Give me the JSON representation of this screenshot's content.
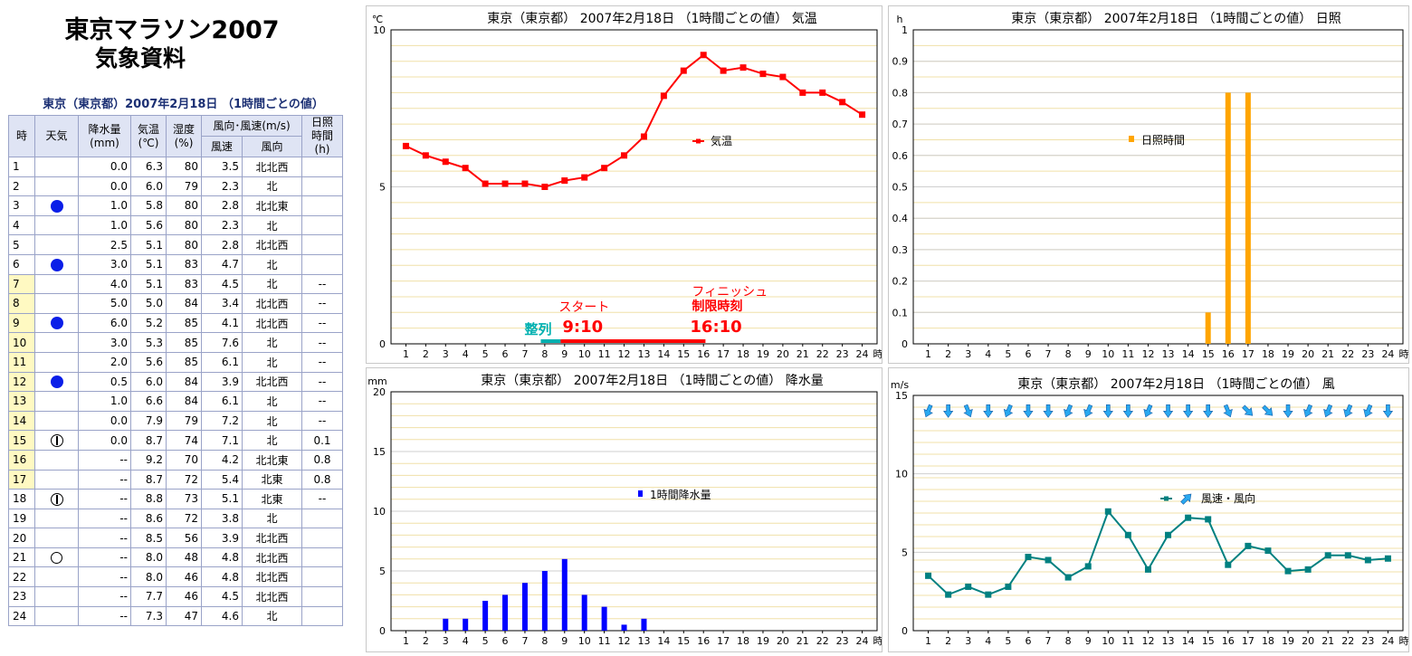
{
  "header": {
    "title": "東京マラソン2007",
    "subtitle": "気象資料",
    "table_caption": "東京（東京都）2007年2月18日 （1時間ごとの値）"
  },
  "table": {
    "headers": {
      "hour": "時",
      "weather": "天気",
      "precip": [
        "降水量",
        "(mm)"
      ],
      "temp": [
        "気温",
        "(℃)"
      ],
      "humidity": [
        "湿度",
        "(%)"
      ],
      "wind_group": "風向･風速(m/s)",
      "wind_speed": "風速",
      "wind_dir": "風向",
      "sunshine": [
        "日照",
        "時間",
        "(h)"
      ]
    },
    "rows": [
      {
        "hour": "1",
        "weather": "",
        "precip": "0.0",
        "temp": "6.3",
        "humidity": "80",
        "wind_speed": "3.5",
        "wind_dir": "北北西",
        "sunshine": ""
      },
      {
        "hour": "2",
        "weather": "",
        "precip": "0.0",
        "temp": "6.0",
        "humidity": "79",
        "wind_speed": "2.3",
        "wind_dir": "北",
        "sunshine": ""
      },
      {
        "hour": "3",
        "weather": "rain",
        "precip": "1.0",
        "temp": "5.8",
        "humidity": "80",
        "wind_speed": "2.8",
        "wind_dir": "北北東",
        "sunshine": ""
      },
      {
        "hour": "4",
        "weather": "",
        "precip": "1.0",
        "temp": "5.6",
        "humidity": "80",
        "wind_speed": "2.3",
        "wind_dir": "北",
        "sunshine": ""
      },
      {
        "hour": "5",
        "weather": "",
        "precip": "2.5",
        "temp": "5.1",
        "humidity": "80",
        "wind_speed": "2.8",
        "wind_dir": "北北西",
        "sunshine": ""
      },
      {
        "hour": "6",
        "weather": "rain",
        "precip": "3.0",
        "temp": "5.1",
        "humidity": "83",
        "wind_speed": "4.7",
        "wind_dir": "北",
        "sunshine": ""
      },
      {
        "hour": "7",
        "weather": "",
        "precip": "4.0",
        "temp": "5.1",
        "humidity": "83",
        "wind_speed": "4.5",
        "wind_dir": "北",
        "sunshine": "--",
        "race": true
      },
      {
        "hour": "8",
        "weather": "",
        "precip": "5.0",
        "temp": "5.0",
        "humidity": "84",
        "wind_speed": "3.4",
        "wind_dir": "北北西",
        "sunshine": "--",
        "race": true
      },
      {
        "hour": "9",
        "weather": "rain",
        "precip": "6.0",
        "temp": "5.2",
        "humidity": "85",
        "wind_speed": "4.1",
        "wind_dir": "北北西",
        "sunshine": "--",
        "race": true
      },
      {
        "hour": "10",
        "weather": "",
        "precip": "3.0",
        "temp": "5.3",
        "humidity": "85",
        "wind_speed": "7.6",
        "wind_dir": "北",
        "sunshine": "--",
        "race": true
      },
      {
        "hour": "11",
        "weather": "",
        "precip": "2.0",
        "temp": "5.6",
        "humidity": "85",
        "wind_speed": "6.1",
        "wind_dir": "北",
        "sunshine": "--",
        "race": true
      },
      {
        "hour": "12",
        "weather": "rain",
        "precip": "0.5",
        "temp": "6.0",
        "humidity": "84",
        "wind_speed": "3.9",
        "wind_dir": "北北西",
        "sunshine": "--",
        "race": true
      },
      {
        "hour": "13",
        "weather": "",
        "precip": "1.0",
        "temp": "6.6",
        "humidity": "84",
        "wind_speed": "6.1",
        "wind_dir": "北",
        "sunshine": "--",
        "race": true
      },
      {
        "hour": "14",
        "weather": "",
        "precip": "0.0",
        "temp": "7.9",
        "humidity": "79",
        "wind_speed": "7.2",
        "wind_dir": "北",
        "sunshine": "--",
        "race": true
      },
      {
        "hour": "15",
        "weather": "fine",
        "precip": "0.0",
        "temp": "8.7",
        "humidity": "74",
        "wind_speed": "7.1",
        "wind_dir": "北",
        "sunshine": "0.1",
        "race": true
      },
      {
        "hour": "16",
        "weather": "",
        "precip": "--",
        "temp": "9.2",
        "humidity": "70",
        "wind_speed": "4.2",
        "wind_dir": "北北東",
        "sunshine": "0.8",
        "race": true
      },
      {
        "hour": "17",
        "weather": "",
        "precip": "--",
        "temp": "8.7",
        "humidity": "72",
        "wind_speed": "5.4",
        "wind_dir": "北東",
        "sunshine": "0.8",
        "race": true
      },
      {
        "hour": "18",
        "weather": "fine",
        "precip": "--",
        "temp": "8.8",
        "humidity": "73",
        "wind_speed": "5.1",
        "wind_dir": "北東",
        "sunshine": "--"
      },
      {
        "hour": "19",
        "weather": "",
        "precip": "--",
        "temp": "8.6",
        "humidity": "72",
        "wind_speed": "3.8",
        "wind_dir": "北",
        "sunshine": ""
      },
      {
        "hour": "20",
        "weather": "",
        "precip": "--",
        "temp": "8.5",
        "humidity": "56",
        "wind_speed": "3.9",
        "wind_dir": "北北西",
        "sunshine": ""
      },
      {
        "hour": "21",
        "weather": "clear",
        "precip": "--",
        "temp": "8.0",
        "humidity": "48",
        "wind_speed": "4.8",
        "wind_dir": "北北西",
        "sunshine": ""
      },
      {
        "hour": "22",
        "weather": "",
        "precip": "--",
        "temp": "8.0",
        "humidity": "46",
        "wind_speed": "4.8",
        "wind_dir": "北北西",
        "sunshine": ""
      },
      {
        "hour": "23",
        "weather": "",
        "precip": "--",
        "temp": "7.7",
        "humidity": "46",
        "wind_speed": "4.5",
        "wind_dir": "北北西",
        "sunshine": ""
      },
      {
        "hour": "24",
        "weather": "",
        "precip": "--",
        "temp": "7.3",
        "humidity": "47",
        "wind_speed": "4.6",
        "wind_dir": "北",
        "sunshine": ""
      }
    ]
  },
  "colors": {
    "temperature": "#ff0000",
    "sunshine": "#ffa500",
    "precipitation": "#0000ff",
    "wind": "#008080",
    "arrow": "#29a9f0",
    "gridline": "#f0e0a8",
    "queue": "#00b0b0"
  },
  "chart_data": [
    {
      "id": "temp",
      "type": "line",
      "title": "東京（東京都） 2007年2月18日 （1時間ごとの値） 気温",
      "unit": "℃",
      "x_suffix": "時",
      "x": [
        1,
        2,
        3,
        4,
        5,
        6,
        7,
        8,
        9,
        10,
        11,
        12,
        13,
        14,
        15,
        16,
        17,
        18,
        19,
        20,
        21,
        22,
        23,
        24
      ],
      "ylim": [
        0,
        10
      ],
      "y_ticks": [
        0,
        5,
        10
      ],
      "grid": true,
      "legend": "気温",
      "series": [
        {
          "name": "気温",
          "values": [
            6.3,
            6.0,
            5.8,
            5.6,
            5.1,
            5.1,
            5.1,
            5.0,
            5.2,
            5.3,
            5.6,
            6.0,
            6.6,
            7.9,
            8.7,
            9.2,
            8.7,
            8.8,
            8.6,
            8.5,
            8.0,
            8.0,
            7.7,
            7.3
          ]
        }
      ],
      "annotations": {
        "queue_label": "整列",
        "start_label": "スタート",
        "start_time": "9:10",
        "finish_label1": "フィニッシュ",
        "finish_label2": "制限時刻",
        "finish_time": "16:10",
        "queue_start_hour": 7.8,
        "race_start_hour": 8.8,
        "race_end_hour": 16.1
      }
    },
    {
      "id": "sun",
      "type": "bar",
      "title": "東京（東京都） 2007年2月18日 （1時間ごとの値） 日照",
      "unit": "h",
      "x_suffix": "時",
      "x": [
        1,
        2,
        3,
        4,
        5,
        6,
        7,
        8,
        9,
        10,
        11,
        12,
        13,
        14,
        15,
        16,
        17,
        18,
        19,
        20,
        21,
        22,
        23,
        24
      ],
      "ylim": [
        0,
        1
      ],
      "y_ticks": [
        0,
        0.1,
        0.2,
        0.3,
        0.4,
        0.5,
        0.6,
        0.7,
        0.8,
        0.9,
        1
      ],
      "grid": true,
      "legend": "日照時間",
      "series": [
        {
          "name": "日照時間",
          "values": [
            null,
            null,
            null,
            null,
            null,
            null,
            0,
            0,
            0,
            0,
            0,
            0,
            0,
            0,
            0.1,
            0.8,
            0.8,
            0,
            null,
            null,
            null,
            null,
            null,
            null
          ]
        }
      ]
    },
    {
      "id": "precip",
      "type": "bar",
      "title": "東京（東京都） 2007年2月18日 （1時間ごとの値） 降水量",
      "unit": "mm",
      "x_suffix": "時",
      "x": [
        1,
        2,
        3,
        4,
        5,
        6,
        7,
        8,
        9,
        10,
        11,
        12,
        13,
        14,
        15,
        16,
        17,
        18,
        19,
        20,
        21,
        22,
        23,
        24
      ],
      "ylim": [
        0,
        20
      ],
      "y_ticks": [
        0,
        5,
        10,
        15,
        20
      ],
      "grid": true,
      "legend": "1時間降水量",
      "series": [
        {
          "name": "1時間降水量",
          "values": [
            0,
            0,
            1.0,
            1.0,
            2.5,
            3.0,
            4.0,
            5.0,
            6.0,
            3.0,
            2.0,
            0.5,
            1.0,
            0,
            0,
            null,
            null,
            null,
            null,
            null,
            null,
            null,
            null,
            null
          ]
        }
      ]
    },
    {
      "id": "wind",
      "type": "line",
      "title": "東京（東京都） 2007年2月18日 （1時間ごとの値） 風",
      "unit": "m/s",
      "x_suffix": "時",
      "x": [
        1,
        2,
        3,
        4,
        5,
        6,
        7,
        8,
        9,
        10,
        11,
        12,
        13,
        14,
        15,
        16,
        17,
        18,
        19,
        20,
        21,
        22,
        23,
        24
      ],
      "ylim": [
        0,
        15
      ],
      "y_ticks": [
        0,
        5,
        10,
        15
      ],
      "grid": true,
      "legend": "風速・風向",
      "series": [
        {
          "name": "風速・風向",
          "values": [
            3.5,
            2.3,
            2.8,
            2.3,
            2.8,
            4.7,
            4.5,
            3.4,
            4.1,
            7.6,
            6.1,
            3.9,
            6.1,
            7.2,
            7.1,
            4.2,
            5.4,
            5.1,
            3.8,
            3.9,
            4.8,
            4.8,
            4.5,
            4.6
          ]
        }
      ],
      "wind_dir_deg": [
        337.5,
        0,
        22.5,
        0,
        337.5,
        0,
        0,
        337.5,
        337.5,
        0,
        0,
        337.5,
        0,
        0,
        0,
        22.5,
        45,
        45,
        0,
        337.5,
        337.5,
        337.5,
        337.5,
        0
      ]
    }
  ]
}
